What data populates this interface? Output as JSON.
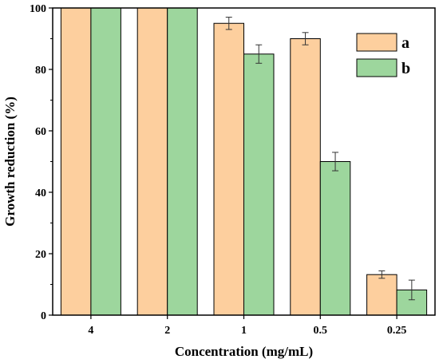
{
  "chart_data": {
    "type": "bar",
    "categories": [
      "4",
      "2",
      "1",
      "0.5",
      "0.25"
    ],
    "series": [
      {
        "name": "a",
        "values": [
          100,
          100,
          95,
          90,
          13.2
        ],
        "errors": [
          0,
          0,
          2,
          2,
          1.2
        ],
        "color": "#fdcf9e"
      },
      {
        "name": "b",
        "values": [
          100,
          100,
          85,
          50,
          8.2
        ],
        "errors": [
          0,
          0,
          3,
          3,
          3.2
        ],
        "color": "#9dd69d"
      }
    ],
    "xlabel": "Concentration (mg/mL)",
    "ylabel": "Growth reduction (%)",
    "ylim": [
      0,
      100
    ],
    "yticks": [
      0,
      20,
      40,
      60,
      80,
      100
    ],
    "grid": false,
    "legend_position": "top-right"
  }
}
